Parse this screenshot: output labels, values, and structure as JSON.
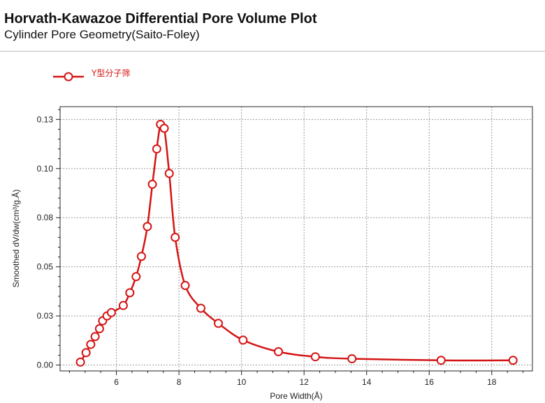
{
  "header": {
    "title": "Horvath-Kawazoe Differential Pore Volume Plot",
    "subtitle": "Cylinder Pore Geometry(Saito-Foley)"
  },
  "chart_data": {
    "type": "line",
    "xlabel": "Pore Width(Å)",
    "ylabel": "Smoothed dV/dw(cm³/g.Å)",
    "xlim": [
      4.2,
      19.3
    ],
    "ylim": [
      -0.003,
      0.1315
    ],
    "x_ticks": [
      6,
      8,
      10,
      12,
      14,
      16,
      18
    ],
    "x_tick_labels": [
      "6",
      "8",
      "10",
      "12",
      "14",
      "16",
      "18"
    ],
    "y_ticks": [
      0.0,
      0.025,
      0.05,
      0.075,
      0.1,
      0.125
    ],
    "y_tick_labels": [
      "0.00",
      "0.03",
      "0.05",
      "0.08",
      "0.10",
      "0.13"
    ],
    "grid": true,
    "legend_position": "top-left",
    "series": [
      {
        "name": "Y型分子筛",
        "color": "#d41414",
        "marker": "open-circle",
        "points": [
          [
            4.85,
            0.0015
          ],
          [
            5.03,
            0.0063
          ],
          [
            5.18,
            0.0105
          ],
          [
            5.32,
            0.0145
          ],
          [
            5.46,
            0.0185
          ],
          [
            5.56,
            0.0225
          ],
          [
            5.7,
            0.025
          ],
          [
            5.84,
            0.0267
          ],
          [
            6.22,
            0.0303
          ],
          [
            6.43,
            0.0368
          ],
          [
            6.63,
            0.045
          ],
          [
            6.8,
            0.0553
          ],
          [
            6.99,
            0.0705
          ],
          [
            7.15,
            0.092
          ],
          [
            7.29,
            0.11
          ],
          [
            7.41,
            0.1225
          ],
          [
            7.53,
            0.1205
          ],
          [
            7.69,
            0.0975
          ],
          [
            7.88,
            0.065
          ],
          [
            8.2,
            0.0405
          ],
          [
            8.7,
            0.0289
          ],
          [
            9.26,
            0.0212
          ],
          [
            10.05,
            0.0127
          ],
          [
            11.18,
            0.0068
          ],
          [
            12.36,
            0.0042
          ],
          [
            13.53,
            0.0032
          ],
          [
            16.38,
            0.0024
          ],
          [
            18.68,
            0.0024
          ]
        ]
      }
    ]
  }
}
